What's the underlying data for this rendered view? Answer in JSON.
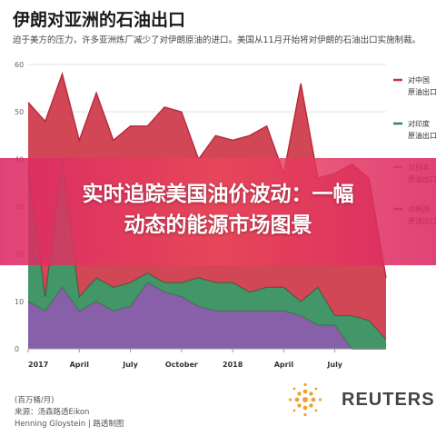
{
  "title": "伊朗对亚洲的石油出口",
  "subtitle": "迫于美方的压力，许多亚洲炼厂减少了对伊朗原油的进口。美国从11月开始将对伊朗的石油出口实施制裁。",
  "banner": {
    "line1": "实时追踪美国油价波动：一幅",
    "line2": "动态的能源市场图景"
  },
  "footer": {
    "unit": "(百万桶/月)",
    "source": "来源：汤森路透Eikon",
    "credit": "Henning Gloystein | 路透制图"
  },
  "logo": {
    "text": "REUTERS"
  },
  "colors": {
    "china": "#cc3344",
    "india": "#2e8b57",
    "japan": "#8a8aa0",
    "korea": "#7b4fa0"
  },
  "chart_data": {
    "type": "area",
    "stacked": true,
    "ylim": [
      0,
      60
    ],
    "yticks": [
      0,
      10,
      20,
      30,
      40,
      50,
      60
    ],
    "x_tick_labels": [
      "2017",
      "April",
      "July",
      "October",
      "2018",
      "April",
      "July"
    ],
    "x": [
      "2017-01",
      "2017-02",
      "2017-03",
      "2017-04",
      "2017-05",
      "2017-06",
      "2017-07",
      "2017-08",
      "2017-09",
      "2017-10",
      "2017-11",
      "2017-12",
      "2018-01",
      "2018-02",
      "2018-03",
      "2018-04",
      "2018-05",
      "2018-06",
      "2018-07",
      "2018-08",
      "2018-09",
      "2018-10"
    ],
    "series": [
      {
        "name": "对韩国原油出口",
        "values": [
          10,
          8,
          13,
          8,
          10,
          8,
          9,
          14,
          12,
          11,
          9,
          8,
          8,
          8,
          8,
          8,
          7,
          5,
          5,
          0,
          0,
          0
        ]
      },
      {
        "name": "对日本原油出口",
        "values": [
          0,
          0,
          0,
          0,
          0,
          0,
          0,
          0,
          0,
          0,
          0,
          0,
          0,
          0,
          0,
          0,
          0,
          0,
          0,
          0,
          0,
          0
        ]
      },
      {
        "name": "对印度原油出口",
        "values": [
          28,
          3,
          27,
          3,
          5,
          5,
          5,
          2,
          2,
          3,
          6,
          6,
          6,
          4,
          5,
          5,
          3,
          8,
          2,
          7,
          6,
          2
        ]
      },
      {
        "name": "对中国原油出口",
        "values": [
          14,
          37,
          18,
          33,
          39,
          31,
          33,
          31,
          37,
          36,
          25,
          31,
          30,
          33,
          34,
          24,
          46,
          23,
          30,
          32,
          30,
          13
        ]
      }
    ],
    "legend": [
      "对中国原油出口",
      "对印度原油出口",
      "对日本原油出口",
      "对韩国原油出口"
    ],
    "legend_position": "right"
  }
}
